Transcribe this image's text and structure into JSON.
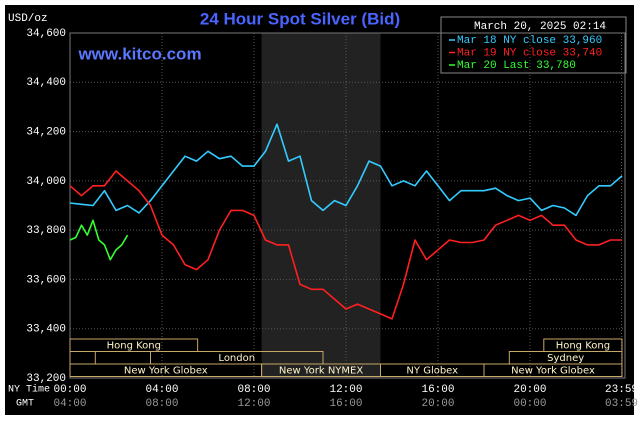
{
  "chart_data": {
    "type": "line",
    "title": "24 Hour Spot Silver (Bid)",
    "watermark": "www.kitco.com",
    "timestamp": "March 20, 2025 02:14",
    "ylabel": "USD/oz",
    "xlabel": "NY Time",
    "x2label": "GMT",
    "ylim": [
      33200,
      34600
    ],
    "yticks": [
      {
        "value": 33200,
        "label": "33,200"
      },
      {
        "value": 33400,
        "label": "33,400"
      },
      {
        "value": 33600,
        "label": "33,600"
      },
      {
        "value": 33800,
        "label": "33,800"
      },
      {
        "value": 34000,
        "label": "34,000"
      },
      {
        "value": 34200,
        "label": "34,200"
      },
      {
        "value": 34400,
        "label": "34,400"
      },
      {
        "value": 34600,
        "label": "34,600"
      }
    ],
    "xlim": [
      0,
      24
    ],
    "xticks": [
      {
        "value": 0,
        "label": "00:00"
      },
      {
        "value": 4,
        "label": "04:00"
      },
      {
        "value": 8,
        "label": "08:00"
      },
      {
        "value": 12,
        "label": "12:00"
      },
      {
        "value": 16,
        "label": "16:00"
      },
      {
        "value": 20,
        "label": "20:00"
      },
      {
        "value": 23.98,
        "label": "23:59"
      }
    ],
    "x2ticks": [
      {
        "value": 0,
        "label": "04:00"
      },
      {
        "value": 4,
        "label": "08:00"
      },
      {
        "value": 8,
        "label": "12:00"
      },
      {
        "value": 12,
        "label": "16:00"
      },
      {
        "value": 16,
        "label": "20:00"
      },
      {
        "value": 20,
        "label": "00:00"
      },
      {
        "value": 23.98,
        "label": "03:59"
      }
    ],
    "grid": true,
    "x": [
      0,
      0.5,
      1,
      1.5,
      2,
      2.5,
      3,
      3.5,
      4,
      4.5,
      5,
      5.5,
      6,
      6.5,
      7,
      7.5,
      8,
      8.5,
      9,
      9.5,
      10,
      10.5,
      11,
      11.5,
      12,
      12.5,
      13,
      13.5,
      14,
      14.5,
      15,
      15.5,
      16,
      16.5,
      17,
      17.5,
      18,
      18.5,
      19,
      19.5,
      20,
      20.5,
      21,
      21.5,
      22,
      22.5,
      23,
      23.5,
      24
    ],
    "series": [
      {
        "name": "Mar 18 NY close 33,960",
        "color": "#33ccff",
        "values": [
          33910,
          33905,
          33900,
          33960,
          33880,
          33900,
          33870,
          33920,
          33980,
          34040,
          34100,
          34080,
          34120,
          34090,
          34100,
          34060,
          34060,
          34120,
          34230,
          34080,
          34100,
          33920,
          33880,
          33920,
          33900,
          33980,
          34080,
          34060,
          33980,
          34000,
          33980,
          34040,
          33980,
          33920,
          33960,
          33960,
          33960,
          33970,
          33940,
          33920,
          33930,
          33880,
          33900,
          33890,
          33860,
          33940,
          33980,
          33980,
          34020
        ]
      },
      {
        "name": "Mar 19 NY close 33,740",
        "color": "#ff2020",
        "values": [
          33980,
          33940,
          33980,
          33980,
          34040,
          34000,
          33960,
          33900,
          33780,
          33740,
          33660,
          33640,
          33680,
          33800,
          33880,
          33880,
          33860,
          33760,
          33740,
          33740,
          33580,
          33560,
          33560,
          33520,
          33480,
          33500,
          33480,
          33460,
          33440,
          33580,
          33760,
          33680,
          33720,
          33760,
          33750,
          33750,
          33760,
          33820,
          33840,
          33860,
          33840,
          33860,
          33820,
          33820,
          33760,
          33740,
          33740,
          33760,
          33760
        ]
      },
      {
        "name": "Mar 20 Last 33,780",
        "color": "#33ff33",
        "x": [
          0,
          0.25,
          0.5,
          0.75,
          1,
          1.25,
          1.5,
          1.75,
          2,
          2.25,
          2.5
        ],
        "values": [
          33760,
          33770,
          33820,
          33780,
          33840,
          33760,
          33740,
          33680,
          33720,
          33740,
          33780
        ]
      }
    ],
    "sessions": [
      {
        "label": "Hong Kong",
        "start": 0,
        "end": 5.55,
        "row": 1
      },
      {
        "label": "Hong Kong",
        "start": 20.6,
        "end": 24,
        "row": 1
      },
      {
        "start": 0,
        "end": 1.1,
        "row": 2
      },
      {
        "label": "London",
        "start": 3.5,
        "end": 11,
        "row": 2
      },
      {
        "label": "Sydney",
        "start": 19.1,
        "end": 24,
        "row": 2
      },
      {
        "label": "New York Globex",
        "start": 0,
        "end": 8.33,
        "row": 3
      },
      {
        "label": "New York NYMEX",
        "start": 8.33,
        "end": 13.5,
        "row": 3,
        "shade": true
      },
      {
        "label": "NY Globex",
        "start": 13.5,
        "end": 18,
        "row": 3
      },
      {
        "label": "New York Globex",
        "start": 18,
        "end": 24,
        "row": 3
      }
    ]
  }
}
